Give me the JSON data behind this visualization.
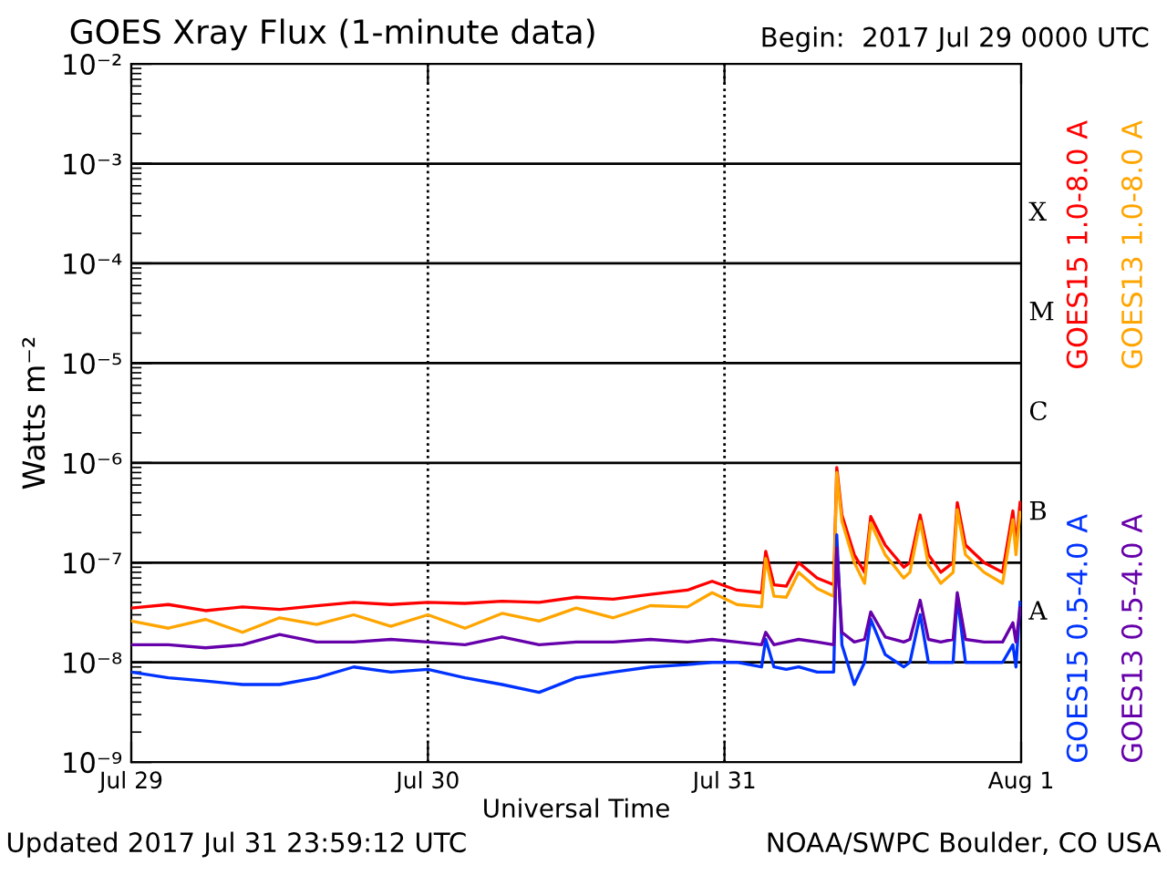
{
  "chart_data": {
    "type": "line",
    "title": "GOES Xray Flux (1-minute data)",
    "subtitle": "Begin:  2017 Jul 29 0000 UTC",
    "xlabel": "Universal Time",
    "ylabel": "Watts m⁻²",
    "annotations": [
      "Updated 2017 Jul 31 23:59:12 UTC",
      "NOAA/SWPC Boulder, CO USA",
      "X",
      "M",
      "C",
      "B",
      "A"
    ],
    "log": true,
    "grid": true,
    "legend": "right",
    "xlim": [
      "2017-07-29T00:00",
      "2017-08-01T00:00"
    ],
    "xticks": [
      {
        "value": "2017-07-29T00:00",
        "label": "Jul 29"
      },
      {
        "value": "2017-07-30T00:00",
        "label": "Jul 30"
      },
      {
        "value": "2017-07-31T00:00",
        "label": "Jul 31"
      },
      {
        "value": "2017-08-01T00:00",
        "label": "Aug 1"
      }
    ],
    "ylim": [
      1e-09,
      0.01
    ],
    "yticks": [
      {
        "value": 1e-09,
        "label": "10⁻⁹"
      },
      {
        "value": 1e-08,
        "label": "10⁻⁸"
      },
      {
        "value": 1e-07,
        "label": "10⁻⁷"
      },
      {
        "value": 1e-06,
        "label": "10⁻⁶"
      },
      {
        "value": 1e-05,
        "label": "10⁻⁵"
      },
      {
        "value": 0.0001,
        "label": "10⁻⁴"
      },
      {
        "value": 0.001,
        "label": "10⁻³"
      },
      {
        "value": 0.01,
        "label": "10⁻²"
      }
    ],
    "x": [
      "2017-07-29T00:00",
      "2017-07-29T03:00",
      "2017-07-29T06:00",
      "2017-07-29T09:00",
      "2017-07-29T12:00",
      "2017-07-29T15:00",
      "2017-07-29T18:00",
      "2017-07-29T21:00",
      "2017-07-30T00:00",
      "2017-07-30T03:00",
      "2017-07-30T06:00",
      "2017-07-30T09:00",
      "2017-07-30T12:00",
      "2017-07-30T15:00",
      "2017-07-30T18:00",
      "2017-07-30T21:00",
      "2017-07-30T23:00",
      "2017-07-31T01:00",
      "2017-07-31T03:00",
      "2017-07-31T03:20",
      "2017-07-31T04:00",
      "2017-07-31T05:00",
      "2017-07-31T06:00",
      "2017-07-31T07:30",
      "2017-07-31T08:50",
      "2017-07-31T09:05",
      "2017-07-31T09:30",
      "2017-07-31T10:30",
      "2017-07-31T11:20",
      "2017-07-31T11:50",
      "2017-07-31T13:00",
      "2017-07-31T14:30",
      "2017-07-31T15:00",
      "2017-07-31T15:50",
      "2017-07-31T16:30",
      "2017-07-31T17:30",
      "2017-07-31T18:30",
      "2017-07-31T18:50",
      "2017-07-31T19:30",
      "2017-07-31T21:00",
      "2017-07-31T22:30",
      "2017-07-31T23:20",
      "2017-07-31T23:35",
      "2017-07-31T23:55"
    ],
    "series": [
      {
        "name": "GOES15 1.0-8.0 A",
        "color": "#ff0000",
        "values": [
          3.5e-08,
          3.8e-08,
          3.3e-08,
          3.6e-08,
          3.4e-08,
          3.7e-08,
          4e-08,
          3.8e-08,
          4e-08,
          3.9e-08,
          4.1e-08,
          4e-08,
          4.5e-08,
          4.3e-08,
          4.8e-08,
          5.3e-08,
          6.5e-08,
          5.3e-08,
          5e-08,
          1.3e-07,
          6e-08,
          5.8e-08,
          1e-07,
          7e-08,
          6e-08,
          9e-07,
          3e-07,
          1.2e-07,
          8e-08,
          2.9e-07,
          1.5e-07,
          9e-08,
          1e-07,
          3e-07,
          1.2e-07,
          8e-08,
          1e-07,
          4e-07,
          1.5e-07,
          1e-07,
          8e-08,
          3.3e-07,
          1.5e-07,
          4e-07
        ]
      },
      {
        "name": "GOES13 1.0-8.0 A",
        "color": "#ffa500",
        "values": [
          2.6e-08,
          2.2e-08,
          2.7e-08,
          2e-08,
          2.8e-08,
          2.4e-08,
          3e-08,
          2.3e-08,
          3e-08,
          2.2e-08,
          3.1e-08,
          2.6e-08,
          3.5e-08,
          2.8e-08,
          3.7e-08,
          3.6e-08,
          5e-08,
          3.8e-08,
          3.6e-08,
          1.1e-07,
          4.6e-08,
          4.5e-08,
          8e-08,
          5.5e-08,
          4.6e-08,
          8e-07,
          2.6e-07,
          1e-07,
          6.2e-08,
          2.5e-07,
          1.2e-07,
          7e-08,
          8e-08,
          2.6e-07,
          9.5e-08,
          6.2e-08,
          8e-08,
          3.4e-07,
          1.2e-07,
          8e-08,
          6.2e-08,
          2.7e-07,
          1.2e-07,
          3.2e-07
        ]
      },
      {
        "name": "GOES15 0.5-4.0 A",
        "color": "#0033ff",
        "values": [
          8e-09,
          7e-09,
          6.5e-09,
          6e-09,
          6e-09,
          7e-09,
          9e-09,
          8e-09,
          8.5e-09,
          7e-09,
          6e-09,
          5e-09,
          7e-09,
          8e-09,
          9e-09,
          9.5e-09,
          1e-08,
          1e-08,
          9e-09,
          1.7e-08,
          9e-09,
          8.5e-09,
          9e-09,
          8e-09,
          8e-09,
          1.9e-07,
          1.5e-08,
          6e-09,
          1e-08,
          2.7e-08,
          1.2e-08,
          9e-09,
          1e-08,
          3e-08,
          1e-08,
          1e-08,
          1e-08,
          4.5e-08,
          1e-08,
          1e-08,
          1e-08,
          1.5e-08,
          9e-09,
          4e-08
        ]
      },
      {
        "name": "GOES13 0.5-4.0 A",
        "color": "#6600aa",
        "values": [
          1.5e-08,
          1.5e-08,
          1.4e-08,
          1.5e-08,
          1.9e-08,
          1.6e-08,
          1.6e-08,
          1.7e-08,
          1.6e-08,
          1.5e-08,
          1.8e-08,
          1.5e-08,
          1.6e-08,
          1.6e-08,
          1.7e-08,
          1.6e-08,
          1.7e-08,
          1.6e-08,
          1.5e-08,
          2e-08,
          1.5e-08,
          1.6e-08,
          1.7e-08,
          1.6e-08,
          1.5e-08,
          1.4e-07,
          2e-08,
          1.6e-08,
          1.7e-08,
          3.2e-08,
          1.8e-08,
          1.6e-08,
          1.7e-08,
          4.2e-08,
          1.7e-08,
          1.6e-08,
          1.7e-08,
          5e-08,
          1.7e-08,
          1.6e-08,
          1.6e-08,
          2.5e-08,
          1.6e-08,
          3.5e-08
        ]
      }
    ]
  }
}
